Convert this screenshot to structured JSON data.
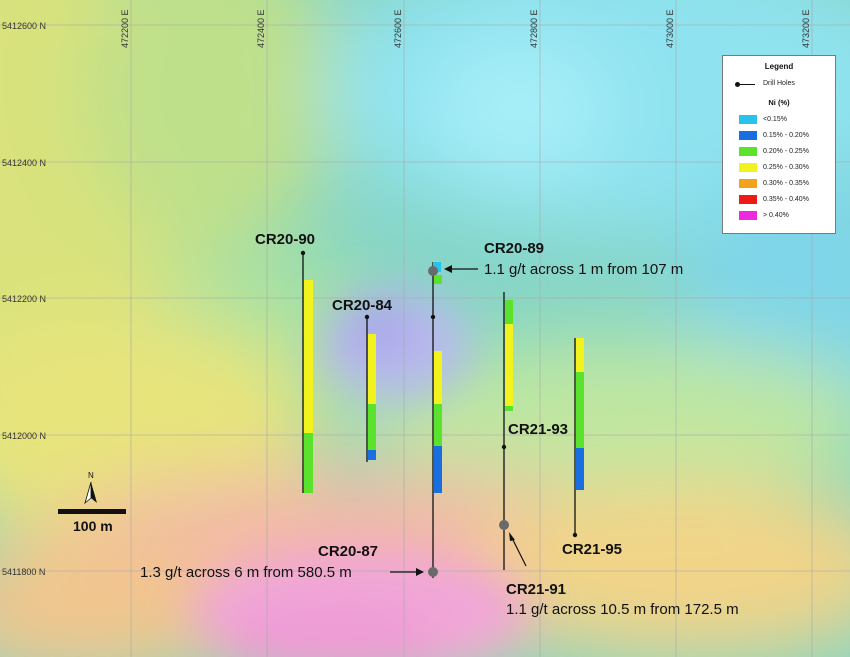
{
  "map": {
    "easting_labels": [
      "472200 E",
      "472400 E",
      "472600 E",
      "472800 E",
      "473000 E",
      "473200 E"
    ],
    "northing_labels": [
      "5412600 N",
      "5412400 N",
      "5412200 N",
      "5412000 N",
      "5411800 N"
    ]
  },
  "drill_holes": [
    {
      "id": "CR20-90",
      "label": "CR20-90"
    },
    {
      "id": "CR20-84",
      "label": "CR20-84"
    },
    {
      "id": "CR20-89",
      "label": "CR20-89"
    },
    {
      "id": "CR20-87",
      "label": "CR20-87"
    },
    {
      "id": "CR21-93",
      "label": "CR21-93"
    },
    {
      "id": "CR21-91",
      "label": "CR21-91"
    },
    {
      "id": "CR21-95",
      "label": "CR21-95"
    }
  ],
  "annotations": {
    "cr20_89": "1.1 g/t across 1 m from 107 m",
    "cr20_87": "1.3 g/t across 6 m from 580.5 m",
    "cr21_91": "1.1 g/t across 10.5 m from 172.5 m"
  },
  "scale_bar": {
    "label": "100 m",
    "north": "N"
  },
  "legend": {
    "title": "Legend",
    "drill_holes_label": "Drill Holes",
    "ni_title": "Ni (%)",
    "classes": [
      {
        "label": "<0.15%",
        "color": "#29c2ea"
      },
      {
        "label": "0.15% - 0.20%",
        "color": "#1a6fe0"
      },
      {
        "label": "0.20% - 0.25%",
        "color": "#5ae22c"
      },
      {
        "label": "0.25% - 0.30%",
        "color": "#f2f21e"
      },
      {
        "label": "0.30% - 0.35%",
        "color": "#f2a21e"
      },
      {
        "label": "0.35% - 0.40%",
        "color": "#ee1a1a"
      },
      {
        "label": "> 0.40%",
        "color": "#ee2ae0"
      }
    ]
  },
  "colors": {
    "ni_lt_015": "#29c2ea",
    "ni_015_020": "#1a6fe0",
    "ni_020_025": "#5ae22c",
    "ni_025_030": "#f2f21e"
  }
}
